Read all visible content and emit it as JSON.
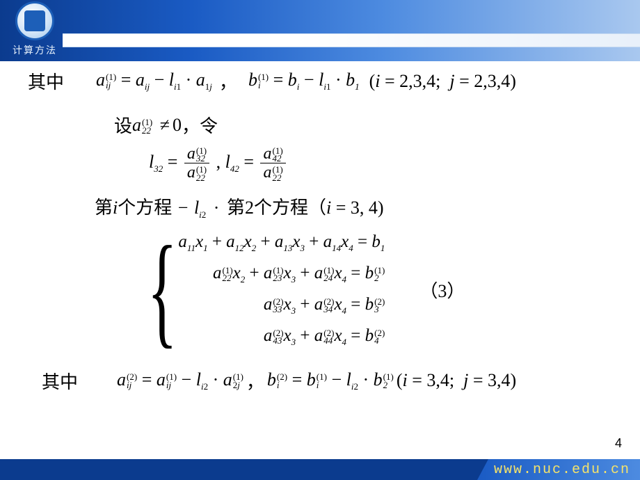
{
  "header": {
    "logo_label": "计算方法",
    "band_color_left": "#0b3b8e",
    "band_color_right": "#a9c8ef"
  },
  "labels": {
    "where": "其中",
    "let_prefix": "设",
    "let_suffix": "，令",
    "line3_a": "第",
    "line3_b": "个方程",
    "line3_c": "第2个方程（",
    "line3_d": ")",
    "eq_tag": "（3）"
  },
  "line1": {
    "lhs1_base": "a",
    "lhs1_sup": "(1)",
    "lhs1_sub": "ij",
    "rhs1": "= a_{ij} − l_{i1} · a_{1j}",
    "sep": "，",
    "lhs2_base": "b",
    "lhs2_sup": "(1)",
    "lhs2_sub": "i",
    "rhs2": "= b_i − l_{i1} · b_1",
    "domain": "(i = 2,3,4;  j = 2,3,4)"
  },
  "line2_cond": {
    "base": "a",
    "sup": "(1)",
    "sub": "22",
    "rel": "≠ 0"
  },
  "line2_defs": {
    "l32": "l_{32}",
    "f1_num_base": "a",
    "f1_num_sup": "(1)",
    "f1_num_sub": "32",
    "f1_den_base": "a",
    "f1_den_sup": "(1)",
    "f1_den_sub": "22",
    "l42": "l_{42}",
    "f2_num_base": "a",
    "f2_num_sup": "(1)",
    "f2_num_sub": "42",
    "f2_den_base": "a",
    "f2_den_sup": "(1)",
    "f2_den_sub": "22"
  },
  "line3": {
    "var_i": "i",
    "minus": "−",
    "coef_base": "l",
    "coef_sub": "i2",
    "dot": "·",
    "domain": "i = 3, 4"
  },
  "system": {
    "rows": [
      {
        "terms": [
          {
            "a": "a",
            "sup": "",
            "sub": "11",
            "x": "x",
            "xsub": "1"
          },
          {
            "a": "a",
            "sup": "",
            "sub": "12",
            "x": "x",
            "xsub": "2"
          },
          {
            "a": "a",
            "sup": "",
            "sub": "13",
            "x": "x",
            "xsub": "3"
          },
          {
            "a": "a",
            "sup": "",
            "sub": "14",
            "x": "x",
            "xsub": "4"
          }
        ],
        "rhs": {
          "b": "b",
          "sup": "",
          "sub": "1"
        }
      },
      {
        "terms": [
          {
            "a": "a",
            "sup": "(1)",
            "sub": "22",
            "x": "x",
            "xsub": "2"
          },
          {
            "a": "a",
            "sup": "(1)",
            "sub": "23",
            "x": "x",
            "xsub": "3"
          },
          {
            "a": "a",
            "sup": "(1)",
            "sub": "24",
            "x": "x",
            "xsub": "4"
          }
        ],
        "rhs": {
          "b": "b",
          "sup": "(1)",
          "sub": "2"
        }
      },
      {
        "terms": [
          {
            "a": "a",
            "sup": "(2)",
            "sub": "33",
            "x": "x",
            "xsub": "3"
          },
          {
            "a": "a",
            "sup": "(2)",
            "sub": "34",
            "x": "x",
            "xsub": "4"
          }
        ],
        "rhs": {
          "b": "b",
          "sup": "(2)",
          "sub": "3"
        }
      },
      {
        "terms": [
          {
            "a": "a",
            "sup": "(2)",
            "sub": "43",
            "x": "x",
            "xsub": "3"
          },
          {
            "a": "a",
            "sup": "(2)",
            "sub": "44",
            "x": "x",
            "xsub": "4"
          }
        ],
        "rhs": {
          "b": "b",
          "sup": "(2)",
          "sub": "4"
        }
      }
    ]
  },
  "line5": {
    "a_lhs": {
      "base": "a",
      "sup": "(2)",
      "sub": "ij"
    },
    "a_r1": {
      "base": "a",
      "sup": "(1)",
      "sub": "ij"
    },
    "coef": {
      "base": "l",
      "sub": "i2"
    },
    "a_r2": {
      "base": "a",
      "sup": "(1)",
      "sub": "2j"
    },
    "sep": "，",
    "b_lhs": {
      "base": "b",
      "sup": "(2)",
      "sub": "i"
    },
    "b_r1": {
      "base": "b",
      "sup": "(1)",
      "sub": "i"
    },
    "b_r2": {
      "base": "b",
      "sup": "(1)",
      "sub": "2"
    },
    "domain": "(i = 3,4;  j = 3,4)"
  },
  "footer": {
    "url": "www.nuc.edu.cn",
    "page": "4"
  },
  "style": {
    "text_color": "#000000",
    "math_fontsize": 26,
    "cn_fontsize": 26,
    "bg": "#ffffff"
  }
}
